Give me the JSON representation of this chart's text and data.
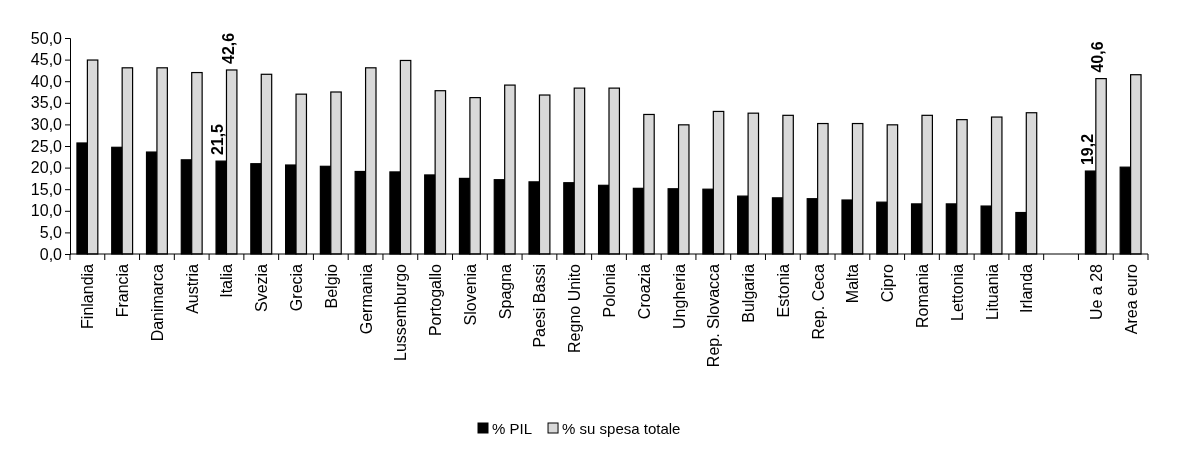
{
  "chart_data": {
    "type": "bar",
    "categories": [
      "Finlandia",
      "Francia",
      "Danimarca",
      "Austria",
      "Italia",
      "Svezia",
      "Grecia",
      "Belgio",
      "Germania",
      "Lussemburgo",
      "Portogallo",
      "Slovenia",
      "Spagna",
      "Paesi Bassi",
      "Regno Unito",
      "Polonia",
      "Croazia",
      "Ungheria",
      "Rep. Slovacca",
      "Bulgaria",
      "Estonia",
      "Rep. Ceca",
      "Malta",
      "Cipro",
      "Romania",
      "Lettonia",
      "Lituania",
      "Irlanda",
      null,
      "Ue a 28",
      "Area euro"
    ],
    "series": [
      {
        "name": "% PIL",
        "color": "#000000",
        "values": [
          25.7,
          24.7,
          23.6,
          21.8,
          21.5,
          20.9,
          20.6,
          20.3,
          19.1,
          19.0,
          18.3,
          17.5,
          17.2,
          16.7,
          16.5,
          15.9,
          15.2,
          15.1,
          15.0,
          13.4,
          13.0,
          12.8,
          12.5,
          12.0,
          11.6,
          11.6,
          11.1,
          9.6,
          null,
          19.2,
          20.1
        ],
        "value_labels": [
          null,
          null,
          null,
          null,
          "21,5",
          null,
          null,
          null,
          null,
          null,
          null,
          null,
          null,
          null,
          null,
          null,
          null,
          null,
          null,
          null,
          null,
          null,
          null,
          null,
          null,
          null,
          null,
          null,
          null,
          "19,2",
          null
        ]
      },
      {
        "name": "% su spesa totale",
        "color": "#d9d9d9",
        "values": [
          44.9,
          43.1,
          43.1,
          42.0,
          42.6,
          41.6,
          37.0,
          37.5,
          43.1,
          44.8,
          37.8,
          36.2,
          39.1,
          36.8,
          38.4,
          38.4,
          32.3,
          29.9,
          33.0,
          32.6,
          32.1,
          30.2,
          30.2,
          29.9,
          32.1,
          31.1,
          31.7,
          32.7,
          null,
          40.6,
          41.5
        ],
        "value_labels": [
          null,
          null,
          null,
          null,
          "42,6",
          null,
          null,
          null,
          null,
          null,
          null,
          null,
          null,
          null,
          null,
          null,
          null,
          null,
          null,
          null,
          null,
          null,
          null,
          null,
          null,
          null,
          null,
          null,
          null,
          "40,6",
          null
        ]
      }
    ],
    "ylim": [
      0,
      50
    ],
    "yticks": [
      {
        "value": 0,
        "label": "0,0"
      },
      {
        "value": 5,
        "label": "5,0"
      },
      {
        "value": 10,
        "label": "10,0"
      },
      {
        "value": 15,
        "label": "15,0"
      },
      {
        "value": 20,
        "label": "20,0"
      },
      {
        "value": 25,
        "label": "25,0"
      },
      {
        "value": 30,
        "label": "30,0"
      },
      {
        "value": 35,
        "label": "35,0"
      },
      {
        "value": 40,
        "label": "40,0"
      },
      {
        "value": 45,
        "label": "45,0"
      },
      {
        "value": 50,
        "label": "50,0"
      }
    ],
    "grid": false,
    "legend": "bottom"
  }
}
